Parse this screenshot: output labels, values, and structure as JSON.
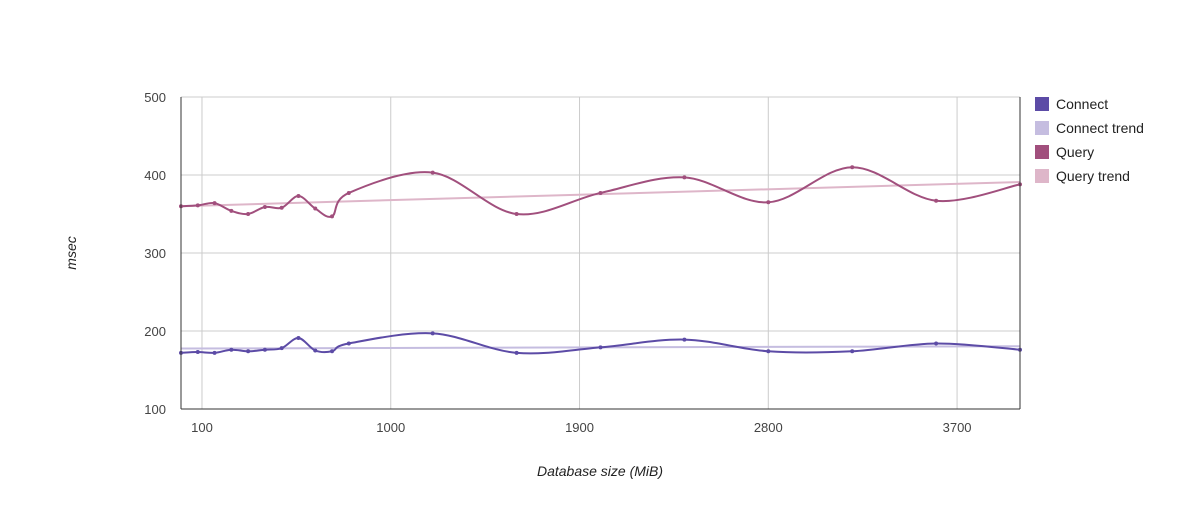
{
  "chart_data": {
    "type": "line",
    "xlabel": "Database size (MiB)",
    "ylabel": "msec",
    "xlim": [
      0,
      4000
    ],
    "ylim": [
      100,
      500
    ],
    "xticks": [
      100,
      1000,
      1900,
      2800,
      3700
    ],
    "yticks": [
      100,
      200,
      300,
      400,
      500
    ],
    "grid": true,
    "legend_position": "right",
    "series": [
      {
        "name": "Connect",
        "color": "#5c4ba6",
        "x": [
          0,
          80,
          160,
          240,
          320,
          400,
          480,
          560,
          640,
          720,
          800,
          1200,
          1600,
          2000,
          2400,
          2800,
          3200,
          3600,
          4000
        ],
        "y": [
          172,
          173,
          172,
          176,
          174,
          176,
          178,
          191,
          175,
          174,
          184,
          197,
          172,
          179,
          189,
          174,
          174,
          184,
          176
        ]
      },
      {
        "name": "Connect trend",
        "color": "#c5bde0",
        "x": [
          0,
          4000
        ],
        "y": [
          177.5,
          180.5
        ]
      },
      {
        "name": "Query",
        "color": "#a14f7d",
        "x": [
          0,
          80,
          160,
          240,
          320,
          400,
          480,
          560,
          640,
          720,
          800,
          1200,
          1600,
          2000,
          2400,
          2800,
          3200,
          3600,
          4000
        ],
        "y": [
          360,
          361,
          364,
          354,
          350,
          359,
          358,
          373,
          357,
          347,
          377,
          403,
          350,
          377,
          397,
          365,
          410,
          367,
          388
        ]
      },
      {
        "name": "Query trend",
        "color": "#deb6c9",
        "x": [
          0,
          4000
        ],
        "y": [
          360,
          391
        ]
      }
    ]
  }
}
